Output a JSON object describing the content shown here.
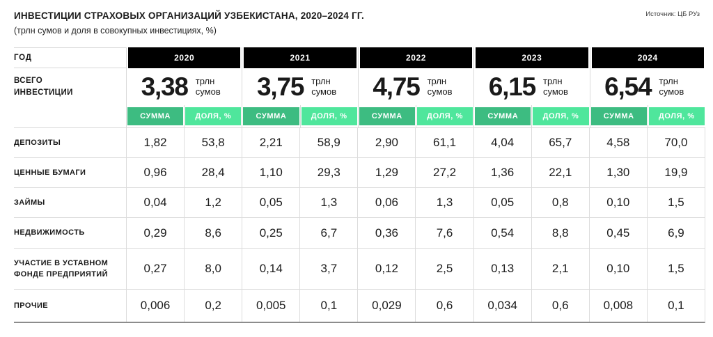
{
  "header": {
    "title": "ИНВЕСТИЦИИ СТРАХОВЫХ ОРГАНИЗАЦИЙ УЗБЕКИСТАНА, 2020–2024 ГГ.",
    "subtitle": "(трлн сумов и доля в совокупных инвестициях, %)",
    "source": "Источник: ЦБ РУз"
  },
  "table": {
    "year_label": "ГОД",
    "years": [
      "2020",
      "2021",
      "2022",
      "2023",
      "2024"
    ],
    "total_label": "ВСЕГО ИНВЕСТИЦИИ",
    "totals": [
      "3,38",
      "3,75",
      "4,75",
      "6,15",
      "6,54"
    ],
    "total_unit": "трлн сумов",
    "subheaders": {
      "sum": "СУММА",
      "share": "ДОЛЯ, %"
    },
    "rows": [
      {
        "label": "ДЕПОЗИТЫ",
        "values": [
          "1,82",
          "53,8",
          "2,21",
          "58,9",
          "2,90",
          "61,1",
          "4,04",
          "65,7",
          "4,58",
          "70,0"
        ]
      },
      {
        "label": "ЦЕННЫЕ БУМАГИ",
        "values": [
          "0,96",
          "28,4",
          "1,10",
          "29,3",
          "1,29",
          "27,2",
          "1,36",
          "22,1",
          "1,30",
          "19,9"
        ]
      },
      {
        "label": "ЗАЙМЫ",
        "values": [
          "0,04",
          "1,2",
          "0,05",
          "1,3",
          "0,06",
          "1,3",
          "0,05",
          "0,8",
          "0,10",
          "1,5"
        ]
      },
      {
        "label": "НЕДВИЖИМОСТЬ",
        "values": [
          "0,29",
          "8,6",
          "0,25",
          "6,7",
          "0,36",
          "7,6",
          "0,54",
          "8,8",
          "0,45",
          "6,9"
        ]
      },
      {
        "label": "УЧАСТИЕ В УСТАВНОМ ФОНДЕ ПРЕДПРИЯТИЙ",
        "values": [
          "0,27",
          "8,0",
          "0,14",
          "3,7",
          "0,12",
          "2,5",
          "0,13",
          "2,1",
          "0,10",
          "1,5"
        ]
      },
      {
        "label": "ПРОЧИЕ",
        "values": [
          "0,006",
          "0,2",
          "0,005",
          "0,1",
          "0,029",
          "0,6",
          "0,034",
          "0,6",
          "0,008",
          "0,1"
        ]
      }
    ]
  },
  "colors": {
    "header_cell": "#000000",
    "sum_green": "#3dbc81",
    "share_green": "#4fe69c",
    "grid_line": "#dcdcdc",
    "bottom_line": "#8c8c8c"
  },
  "chart_data": {
    "type": "table",
    "title": "ИНВЕСТИЦИИ СТРАХОВЫХ ОРГАНИЗАЦИЙ УЗБЕКИСТАНА, 2020–2024 ГГ.",
    "subtitle": "(трлн сумов и доля в совокупных инвестициях, %)",
    "source": "Источник: ЦБ РУз",
    "years": [
      2020,
      2021,
      2022,
      2023,
      2024
    ],
    "totals_trln_sum": [
      3.38,
      3.75,
      4.75,
      6.15,
      6.54
    ],
    "categories": [
      "ДЕПОЗИТЫ",
      "ЦЕННЫЕ БУМАГИ",
      "ЗАЙМЫ",
      "НЕДВИЖИМОСТЬ",
      "УЧАСТИЕ В УСТАВНОМ ФОНДЕ ПРЕДПРИЯТИЙ",
      "ПРОЧИЕ"
    ],
    "series": [
      {
        "name": "ДЕПОЗИТЫ",
        "sum_trln": [
          1.82,
          2.21,
          2.9,
          4.04,
          4.58
        ],
        "share_pct": [
          53.8,
          58.9,
          61.1,
          65.7,
          70.0
        ]
      },
      {
        "name": "ЦЕННЫЕ БУМАГИ",
        "sum_trln": [
          0.96,
          1.1,
          1.29,
          1.36,
          1.3
        ],
        "share_pct": [
          28.4,
          29.3,
          27.2,
          22.1,
          19.9
        ]
      },
      {
        "name": "ЗАЙМЫ",
        "sum_trln": [
          0.04,
          0.05,
          0.06,
          0.05,
          0.1
        ],
        "share_pct": [
          1.2,
          1.3,
          1.3,
          0.8,
          1.5
        ]
      },
      {
        "name": "НЕДВИЖИМОСТЬ",
        "sum_trln": [
          0.29,
          0.25,
          0.36,
          0.54,
          0.45
        ],
        "share_pct": [
          8.6,
          6.7,
          7.6,
          8.8,
          6.9
        ]
      },
      {
        "name": "УЧАСТИЕ В УСТАВНОМ ФОНДЕ ПРЕДПРИЯТИЙ",
        "sum_trln": [
          0.27,
          0.14,
          0.12,
          0.13,
          0.1
        ],
        "share_pct": [
          8.0,
          3.7,
          2.5,
          2.1,
          1.5
        ]
      },
      {
        "name": "ПРОЧИЕ",
        "sum_trln": [
          0.006,
          0.005,
          0.029,
          0.034,
          0.008
        ],
        "share_pct": [
          0.2,
          0.1,
          0.6,
          0.6,
          0.1
        ]
      }
    ]
  }
}
